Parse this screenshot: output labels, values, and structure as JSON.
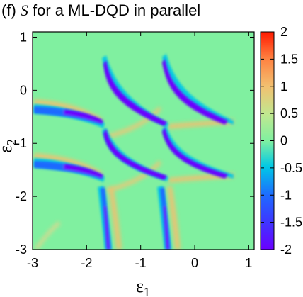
{
  "title_prefix": "(f) ",
  "title_symbol": "S",
  "title_suffix": " for a ML-DQD in parallel",
  "chart_data": {
    "type": "heatmap",
    "title": "(f) S for a ML-DQD in parallel",
    "xlabel_symbol": "ε",
    "xlabel_sub": "1",
    "ylabel_symbol": "ε",
    "ylabel_sub": "2",
    "xlim": [
      -3,
      1.1
    ],
    "ylim": [
      -3,
      1.1
    ],
    "x_ticks": [
      "-3",
      "-2",
      "-1",
      "0",
      "1"
    ],
    "y_ticks": [
      "1",
      "0",
      "-1",
      "-2",
      "-3"
    ],
    "colorbar_range": [
      -2,
      2
    ],
    "colorbar_ticks": [
      "2",
      "1.5",
      "1",
      "0.5",
      "0",
      "-0.5",
      "-1",
      "-1.5",
      "-2"
    ],
    "background_value": 0.2,
    "resonance_centers": [
      {
        "e1": -1.65,
        "e2": -0.55
      },
      {
        "e1": -0.55,
        "e2": -0.55
      },
      {
        "e1": -1.65,
        "e2": -1.65
      },
      {
        "e1": -0.55,
        "e2": -1.65
      }
    ],
    "colormap": [
      "#6a00ff",
      "#1e6bff",
      "#00c8e6",
      "#80f0a0",
      "#80f0a0",
      "#f2c070",
      "#ff8040",
      "#ff1a00"
    ]
  }
}
